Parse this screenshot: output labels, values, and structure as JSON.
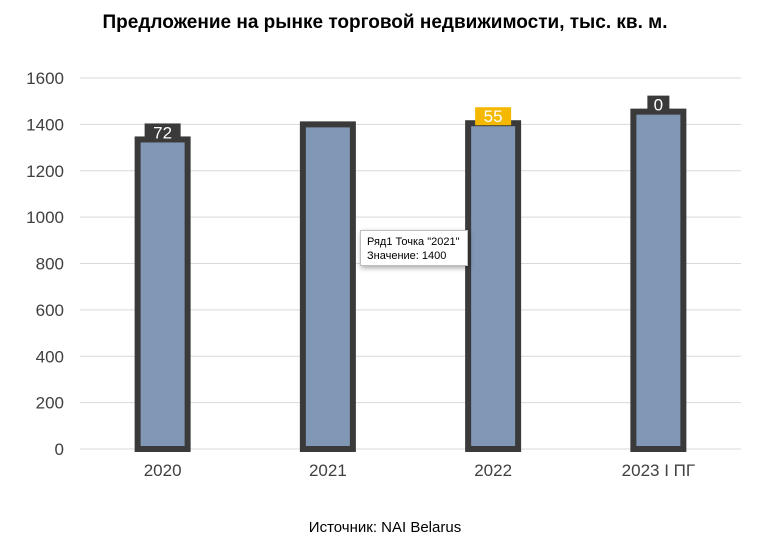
{
  "chart_data": {
    "type": "bar",
    "title": "Предложение на рынке торговой недвижимости, тыс. кв. м.",
    "categories": [
      "2020",
      "2021",
      "2022",
      "2023 I ПГ"
    ],
    "series": [
      {
        "values": [
          1335,
          1400,
          1405,
          1455
        ]
      }
    ],
    "data_labels": [
      "72",
      "",
      "55",
      "0"
    ],
    "data_label_colors": [
      "#3a3a3a",
      "",
      "#f5b800",
      "#3a3a3a"
    ],
    "ylim": [
      0,
      1600
    ],
    "yticks": [
      "0",
      "200",
      "400",
      "600",
      "800",
      "1000",
      "1200",
      "1400",
      "1600"
    ],
    "grid": true,
    "bar_color": "#8097b6",
    "bar_border_color": "#3a3a3a",
    "source": "Источник: NAI Belarus"
  },
  "tooltip": {
    "line1": "Ряд1 Точка \"2021\"",
    "line2": "Значение: 1400"
  }
}
